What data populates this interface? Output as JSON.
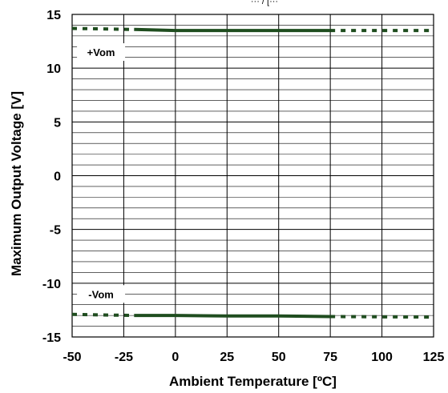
{
  "chart_data": {
    "type": "line",
    "title": "",
    "top_caption": "··· / [···",
    "xlabel": "Ambient Temperature [ºC]",
    "ylabel": "Maximum Output Voltage [V]",
    "xlim": [
      -50,
      125
    ],
    "ylim": [
      -15,
      15
    ],
    "x_ticks": [
      -50,
      -25,
      0,
      25,
      50,
      75,
      100,
      125
    ],
    "y_ticks": [
      -15,
      -10,
      -5,
      0,
      5,
      10,
      15
    ],
    "x_tick_labels": [
      "-50",
      "-25",
      "0",
      "25",
      "50",
      "75",
      "100",
      "125"
    ],
    "y_tick_labels": [
      "-15",
      "-10",
      "-5",
      "0",
      "5",
      "10",
      "15"
    ],
    "grid": true,
    "line_color": "#1f4d1f",
    "series": [
      {
        "name": "+Vom",
        "label": "+Vom",
        "solid": {
          "x": [
            -20,
            0,
            25,
            50,
            75
          ],
          "y": [
            13.6,
            13.5,
            13.5,
            13.5,
            13.5
          ]
        },
        "dotted": [
          {
            "x": [
              -50,
              -20
            ],
            "y": [
              13.7,
              13.6
            ]
          },
          {
            "x": [
              75,
              125
            ],
            "y": [
              13.5,
              13.5
            ]
          }
        ]
      },
      {
        "name": "-Vom",
        "label": "-Vom",
        "solid": {
          "x": [
            -20,
            0,
            25,
            50,
            75
          ],
          "y": [
            -13.0,
            -13.0,
            -13.05,
            -13.05,
            -13.1
          ]
        },
        "dotted": [
          {
            "x": [
              -50,
              -20
            ],
            "y": [
              -12.9,
              -13.0
            ]
          },
          {
            "x": [
              75,
              125
            ],
            "y": [
              -13.1,
              -13.15
            ]
          }
        ]
      }
    ]
  }
}
